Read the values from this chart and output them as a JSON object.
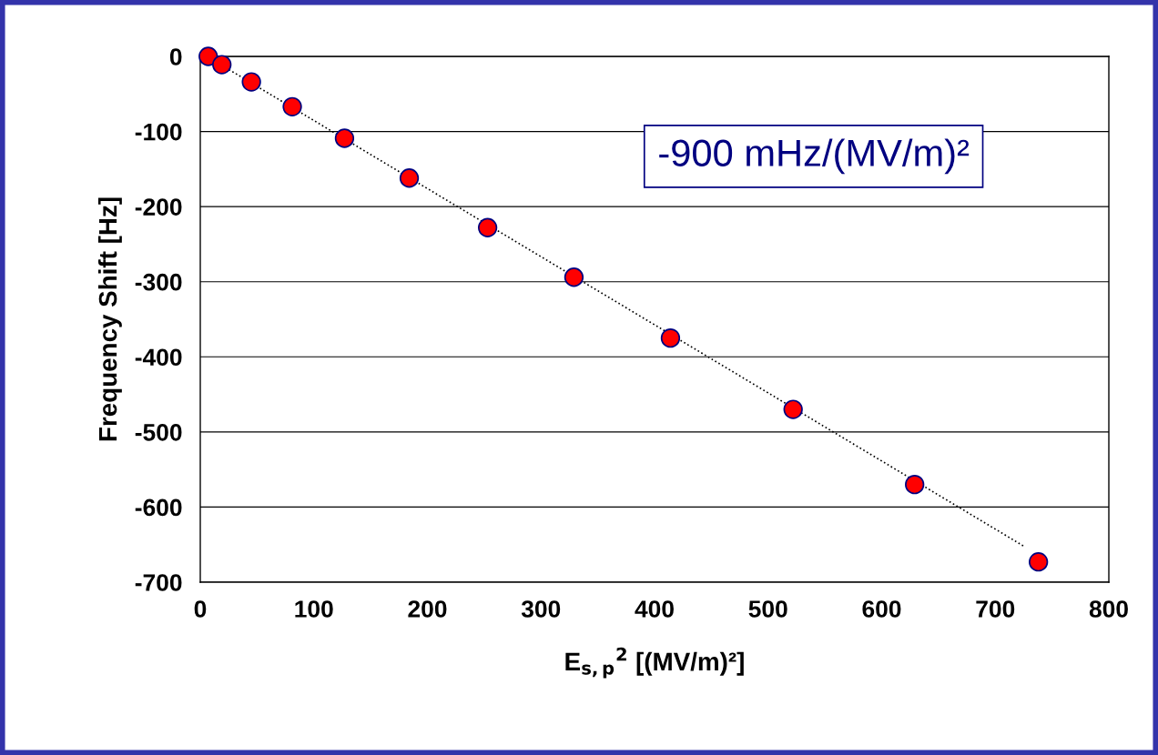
{
  "chart_data": {
    "type": "scatter",
    "xlabel": "E$_{s,p}$$^{2}$ [(MV/m)²]",
    "ylabel": "Frequency Shift [Hz]",
    "series": [
      {
        "color": "#ff0000",
        "x": [
          7,
          19,
          45,
          81,
          127,
          184,
          253,
          329,
          414,
          522,
          629,
          738
        ],
        "values": [
          0,
          -11,
          -34,
          -67,
          -109,
          -162,
          -228,
          -294,
          -375,
          -470,
          -570,
          -673
        ],
        "marker": "circle"
      },
      {
        "type": "line",
        "color": "#000000",
        "x": [
          7,
          725
        ],
        "values": [
          -1,
          -652
        ],
        "line_style": "dotted",
        "marker": "none"
      }
    ],
    "annotations": [
      "-900 mHz/(MV/m)²"
    ],
    "xlim": [
      0,
      800
    ],
    "ylim": [
      -700,
      0
    ],
    "xticks": [
      0,
      100,
      200,
      300,
      400,
      500,
      600,
      700,
      800
    ],
    "yticks": [
      -700,
      -600,
      -500,
      -400,
      -300,
      -200,
      -100,
      0
    ],
    "grid": "y",
    "legend": false
  }
}
